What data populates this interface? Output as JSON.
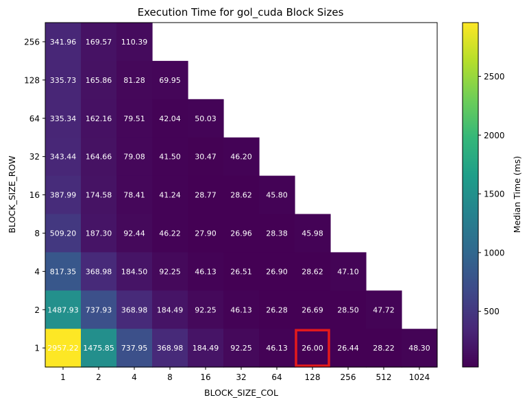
{
  "chart_data": {
    "type": "heatmap",
    "title": "Execution Time for gol_cuda Block Sizes",
    "xlabel": "BLOCK_SIZE_COL",
    "ylabel": "BLOCK_SIZE_ROW",
    "x_categories": [
      "1",
      "2",
      "4",
      "8",
      "16",
      "32",
      "64",
      "128",
      "256",
      "512",
      "1024"
    ],
    "y_categories": [
      "256",
      "128",
      "64",
      "32",
      "16",
      "8",
      "4",
      "2",
      "1"
    ],
    "values": [
      [
        "341.96",
        "169.57",
        "110.39",
        null,
        null,
        null,
        null,
        null,
        null,
        null,
        null
      ],
      [
        "335.73",
        "165.86",
        "81.28",
        "69.95",
        null,
        null,
        null,
        null,
        null,
        null,
        null
      ],
      [
        "335.34",
        "162.16",
        "79.51",
        "42.04",
        "50.03",
        null,
        null,
        null,
        null,
        null,
        null
      ],
      [
        "343.44",
        "164.66",
        "79.08",
        "41.50",
        "30.47",
        "46.20",
        null,
        null,
        null,
        null,
        null
      ],
      [
        "387.99",
        "174.58",
        "78.41",
        "41.24",
        "28.77",
        "28.62",
        "45.80",
        null,
        null,
        null,
        null
      ],
      [
        "509.20",
        "187.30",
        "92.44",
        "46.22",
        "27.90",
        "26.96",
        "28.38",
        "45.98",
        null,
        null,
        null
      ],
      [
        "817.35",
        "368.98",
        "184.50",
        "92.25",
        "46.13",
        "26.51",
        "26.90",
        "28.62",
        "47.10",
        null,
        null
      ],
      [
        "1487.93",
        "737.93",
        "368.98",
        "184.49",
        "92.25",
        "46.13",
        "26.28",
        "26.69",
        "28.50",
        "47.72",
        null
      ],
      [
        "2957.22",
        "1475.85",
        "737.95",
        "368.98",
        "184.49",
        "92.25",
        "46.13",
        "26.00",
        "26.44",
        "28.22",
        "48.30"
      ]
    ],
    "highlight": {
      "row": "1",
      "col": "128"
    },
    "colorbar": {
      "label": "Median Time (ms)",
      "range": [
        26.0,
        2957.22
      ],
      "ticks": [
        500,
        1000,
        1500,
        2000,
        2500
      ]
    },
    "colormap": "viridis",
    "highlight_color": "#e41a1c"
  }
}
